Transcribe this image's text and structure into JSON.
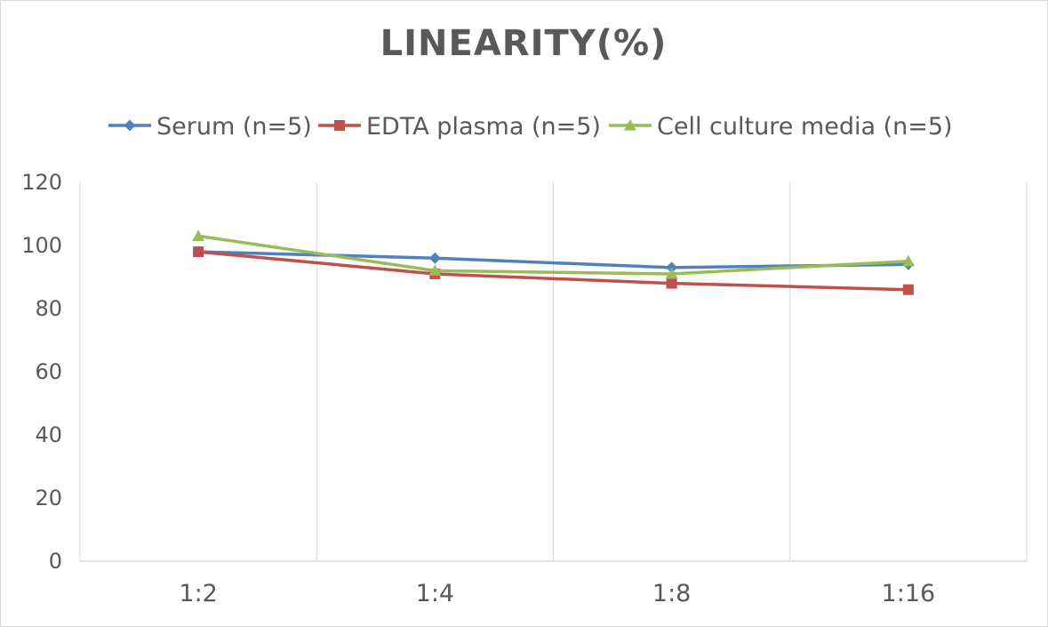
{
  "chart_data": {
    "type": "line",
    "title": "LINEARITY(%)",
    "categories": [
      "1:2",
      "1:4",
      "1:8",
      "1:16"
    ],
    "ylim": [
      0,
      120
    ],
    "yticks": [
      "0",
      "20",
      "40",
      "60",
      "80",
      "100",
      "120"
    ],
    "grid": "vertical",
    "legend_position": "top",
    "series": [
      {
        "name": "Serum (n=5)",
        "color": "#4f81bd",
        "marker": "diamond",
        "values": [
          98,
          96,
          93,
          94
        ]
      },
      {
        "name": "EDTA plasma (n=5)",
        "color": "#c0504d",
        "marker": "square",
        "values": [
          98,
          91,
          88,
          86
        ]
      },
      {
        "name": "Cell culture media (n=5)",
        "color": "#9bbb59",
        "marker": "triangle",
        "values": [
          103,
          92,
          91,
          95
        ]
      }
    ]
  }
}
